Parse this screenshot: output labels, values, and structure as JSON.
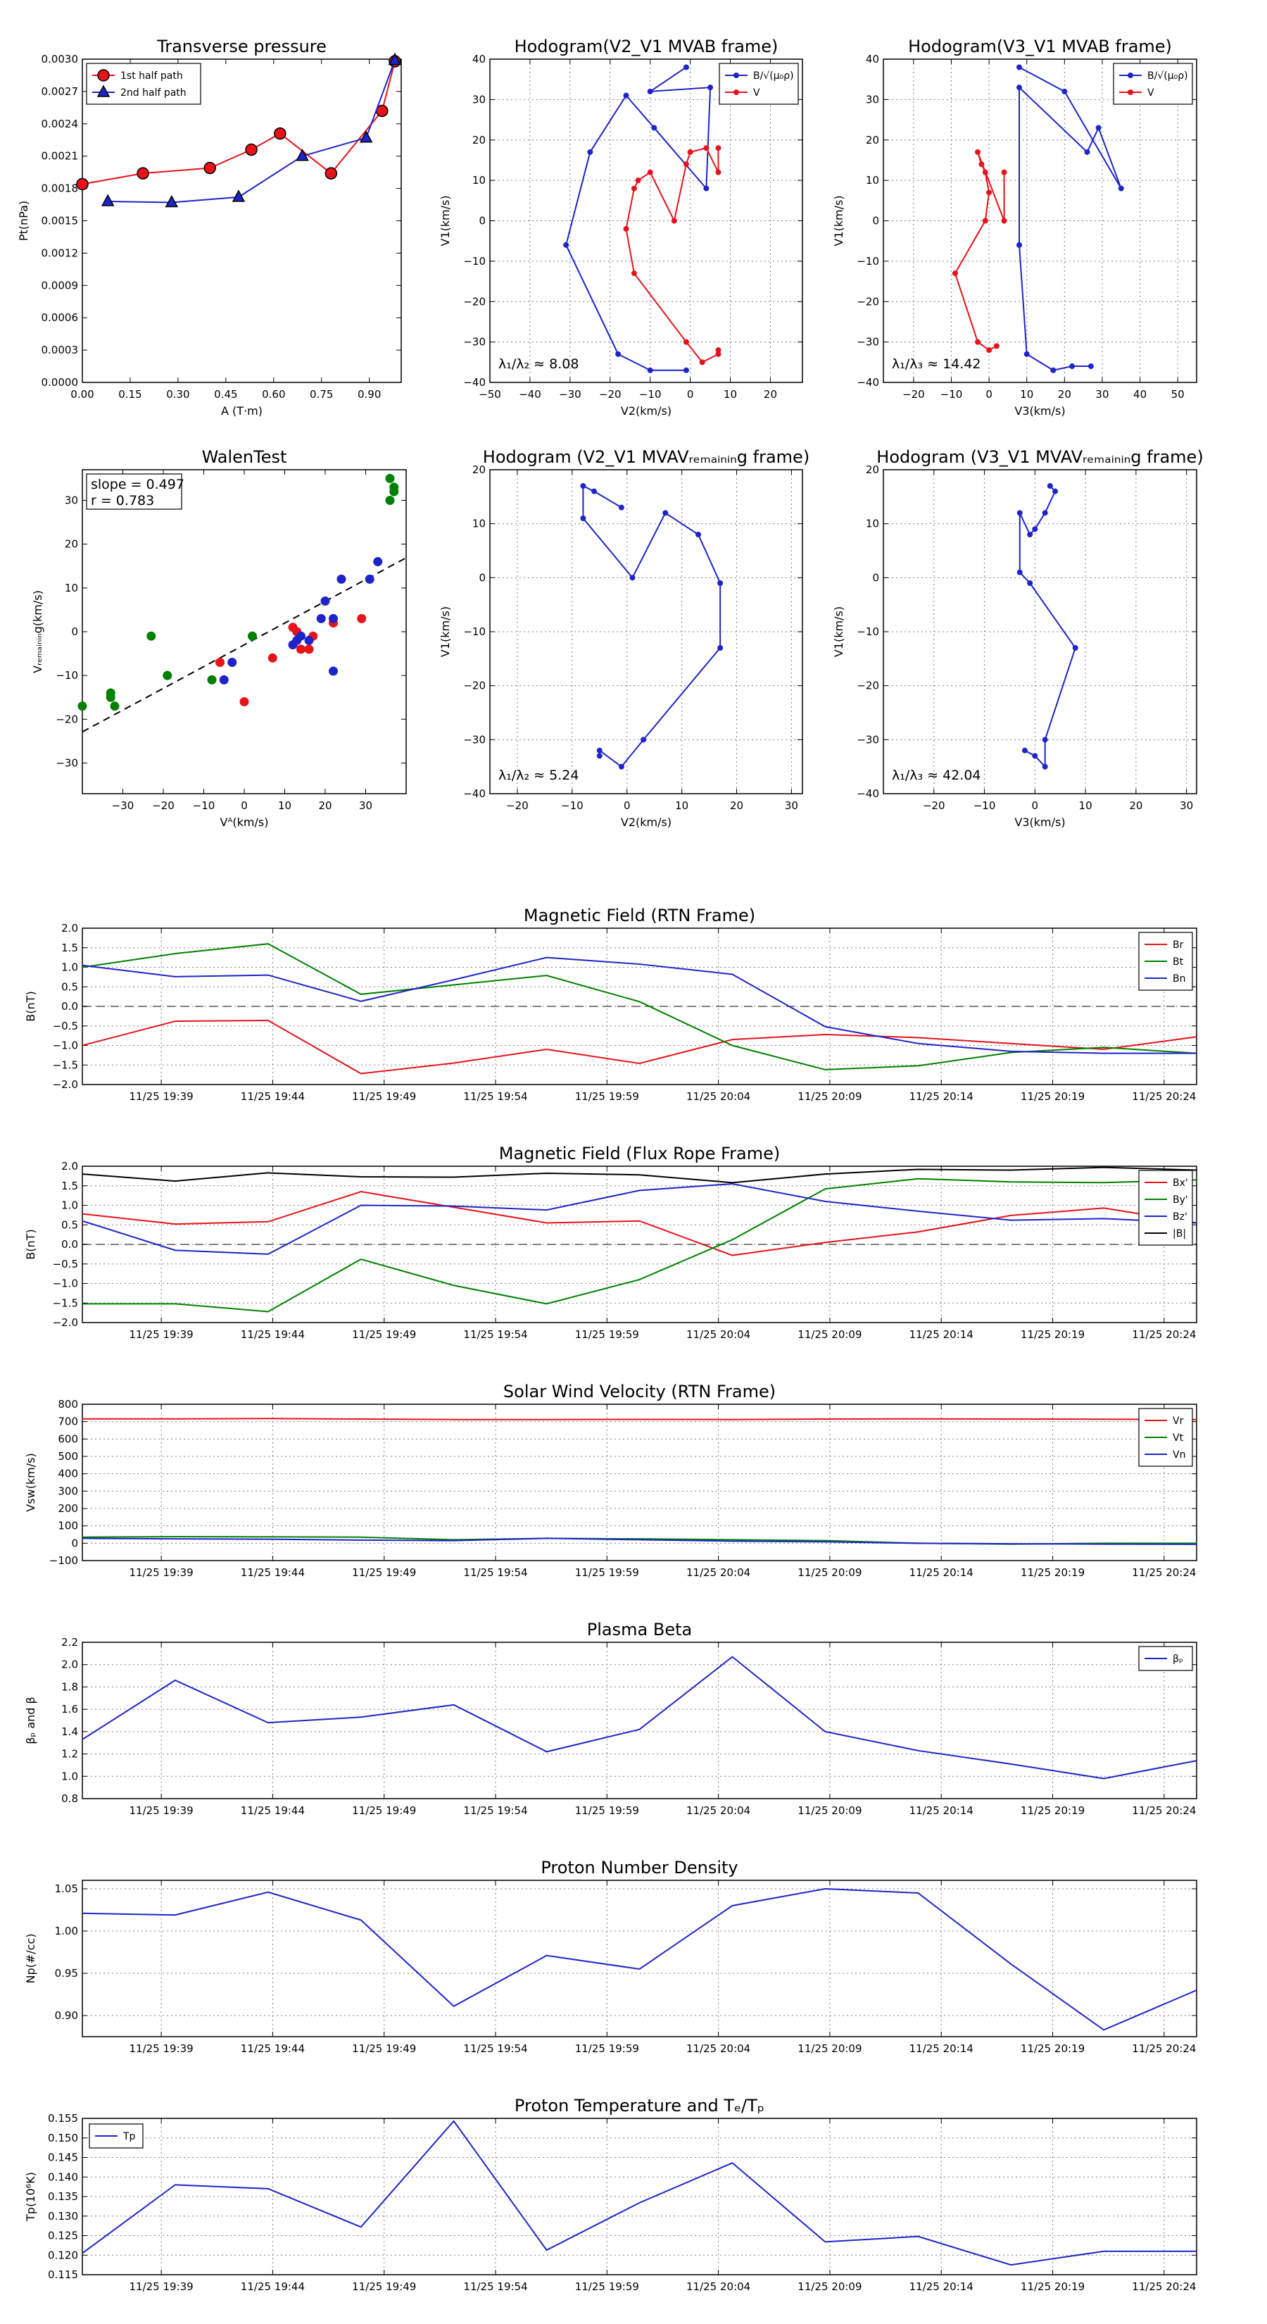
{
  "chart_data": [
    {
      "id": "p1",
      "type": "line",
      "title": "Transverse pressure",
      "xlabel": "A (T·m)",
      "ylabel": "Pt(nPa)",
      "xlim": [
        0,
        1.0
      ],
      "ylim": [
        0,
        0.003
      ],
      "xticks": [
        "0.00",
        "0.15",
        "0.30",
        "0.45",
        "0.60",
        "0.75",
        "0.90"
      ],
      "yticks": [
        "0.0000",
        "0.0003",
        "0.0006",
        "0.0009",
        "0.0012",
        "0.0015",
        "0.0018",
        "0.0021",
        "0.0024",
        "0.0027",
        "0.0030"
      ],
      "grid": false,
      "legend": "top-left",
      "series": [
        {
          "name": "1st half path",
          "color": "#e8121b",
          "marker": "circle",
          "x": [
            0.0,
            0.19,
            0.4,
            0.53,
            0.62,
            0.78,
            0.94,
            0.98
          ],
          "y": [
            0.00184,
            0.00194,
            0.00199,
            0.00216,
            0.00231,
            0.00194,
            0.00252,
            0.00298
          ]
        },
        {
          "name": "2nd half path",
          "color": "#1f24c8",
          "marker": "triangle",
          "x": [
            0.08,
            0.28,
            0.49,
            0.69,
            0.89,
            0.98
          ],
          "y": [
            0.00168,
            0.00167,
            0.00172,
            0.0021,
            0.00227,
            0.00299
          ]
        }
      ]
    },
    {
      "id": "p2",
      "type": "line",
      "title": "Hodogram(V2_V1 MVAB frame)",
      "xlabel": "V2(km/s)",
      "ylabel": "V1(km/s)",
      "xlim": [
        -50,
        28
      ],
      "ylim": [
        -40,
        40
      ],
      "xticks": [
        "−50",
        "−40",
        "−30",
        "−20",
        "−10",
        "0",
        "10",
        "20"
      ],
      "yticks": [
        "−40",
        "−30",
        "−20",
        "−10",
        "0",
        "10",
        "20",
        "30",
        "40"
      ],
      "grid": true,
      "legend": "top-right",
      "annotation": "λ₁/λ₂ ≈ 8.08",
      "series": [
        {
          "name": "B/√(μ₀ρ)",
          "color": "#1f24c8",
          "marker": "dot",
          "x": [
            -1,
            -10,
            -18,
            -31,
            -25,
            -16,
            -9,
            4,
            5,
            -10,
            -1
          ],
          "y": [
            -37,
            -37,
            -33,
            -6,
            17,
            31,
            23,
            8,
            33,
            32,
            38
          ]
        },
        {
          "name": "V",
          "color": "#e8121b",
          "marker": "dot",
          "x": [
            7,
            7,
            3,
            -1,
            -14,
            -16,
            -14,
            -13,
            -10,
            -4,
            -1,
            0,
            4,
            7,
            7
          ],
          "y": [
            -32,
            -33,
            -35,
            -30,
            -13,
            -2,
            8,
            10,
            12,
            0,
            14,
            17,
            18,
            12,
            18
          ]
        }
      ]
    },
    {
      "id": "p3",
      "type": "line",
      "title": "Hodogram(V3_V1 MVAB frame)",
      "xlabel": "V3(km/s)",
      "ylabel": "V1(km/s)",
      "xlim": [
        -28,
        55
      ],
      "ylim": [
        -40,
        40
      ],
      "xticks": [
        "−20",
        "−10",
        "0",
        "10",
        "20",
        "30",
        "40",
        "50"
      ],
      "yticks": [
        "−40",
        "−30",
        "−20",
        "−10",
        "0",
        "10",
        "20",
        "30",
        "40"
      ],
      "grid": true,
      "legend": "top-right",
      "annotation": "λ₁/λ₃ ≈ 14.42",
      "series": [
        {
          "name": "B/√(μ₀ρ)",
          "color": "#1f24c8",
          "marker": "dot",
          "x": [
            27,
            22,
            17,
            10,
            8,
            8,
            26,
            29,
            35,
            20,
            8
          ],
          "y": [
            -36,
            -36,
            -37,
            -33,
            -6,
            33,
            17,
            23,
            8,
            32,
            38
          ]
        },
        {
          "name": "V",
          "color": "#e8121b",
          "marker": "dot",
          "x": [
            2,
            0,
            -3,
            -9,
            -1,
            0,
            -1,
            -2,
            -3,
            4,
            4
          ],
          "y": [
            -31,
            -32,
            -30,
            -13,
            0,
            7,
            12,
            14,
            17,
            0,
            12
          ]
        }
      ]
    },
    {
      "id": "p4",
      "type": "scatter",
      "title": "WalenTest",
      "xlabel": "Vᴬ(km/s)",
      "ylabel": "Vᵣₑₘₐᵢₙᵢₙg(km/s)",
      "xlim": [
        -40,
        40
      ],
      "ylim": [
        -37,
        37
      ],
      "xticks": [
        "−30",
        "−20",
        "−10",
        "0",
        "10",
        "20",
        "30"
      ],
      "yticks": [
        "−30",
        "−20",
        "−10",
        "0",
        "10",
        "20",
        "30"
      ],
      "grid": false,
      "fit": {
        "slope": 0.497,
        "intercept": -3
      },
      "annotation_slope": "slope = 0.497",
      "annotation_r": "r = 0.783",
      "points": [
        {
          "x": -33,
          "y": -14,
          "color": "#008000"
        },
        {
          "x": -33,
          "y": -15,
          "color": "#008000"
        },
        {
          "x": -32,
          "y": -17,
          "color": "#008000"
        },
        {
          "x": -40,
          "y": -17,
          "color": "#008000"
        },
        {
          "x": -23,
          "y": -1,
          "color": "#008000"
        },
        {
          "x": -19,
          "y": -10,
          "color": "#008000"
        },
        {
          "x": -8,
          "y": -11,
          "color": "#008000"
        },
        {
          "x": 2,
          "y": -1,
          "color": "#008000"
        },
        {
          "x": 36,
          "y": 35,
          "color": "#008000"
        },
        {
          "x": 37,
          "y": 32,
          "color": "#008000"
        },
        {
          "x": 37,
          "y": 33,
          "color": "#008000"
        },
        {
          "x": 36,
          "y": 30,
          "color": "#008000"
        },
        {
          "x": -6,
          "y": -7,
          "color": "#e8121b"
        },
        {
          "x": 0,
          "y": -16,
          "color": "#e8121b"
        },
        {
          "x": 7,
          "y": -6,
          "color": "#e8121b"
        },
        {
          "x": 12,
          "y": 1,
          "color": "#e8121b"
        },
        {
          "x": 13,
          "y": 0,
          "color": "#e8121b"
        },
        {
          "x": 14,
          "y": -4,
          "color": "#e8121b"
        },
        {
          "x": 16,
          "y": -4,
          "color": "#e8121b"
        },
        {
          "x": 17,
          "y": -1,
          "color": "#e8121b"
        },
        {
          "x": 22,
          "y": 2,
          "color": "#e8121b"
        },
        {
          "x": 29,
          "y": 3,
          "color": "#e8121b"
        },
        {
          "x": -5,
          "y": -11,
          "color": "#1f24c8"
        },
        {
          "x": -3,
          "y": -7,
          "color": "#1f24c8"
        },
        {
          "x": 12,
          "y": -3,
          "color": "#1f24c8"
        },
        {
          "x": 13,
          "y": -2,
          "color": "#1f24c8"
        },
        {
          "x": 14,
          "y": -1,
          "color": "#1f24c8"
        },
        {
          "x": 16,
          "y": -2,
          "color": "#1f24c8"
        },
        {
          "x": 19,
          "y": 3,
          "color": "#1f24c8"
        },
        {
          "x": 20,
          "y": 7,
          "color": "#1f24c8"
        },
        {
          "x": 22,
          "y": -9,
          "color": "#1f24c8"
        },
        {
          "x": 22,
          "y": 3,
          "color": "#1f24c8"
        },
        {
          "x": 24,
          "y": 12,
          "color": "#1f24c8"
        },
        {
          "x": 31,
          "y": 12,
          "color": "#1f24c8"
        },
        {
          "x": 33,
          "y": 16,
          "color": "#1f24c8"
        }
      ]
    },
    {
      "id": "p5",
      "type": "line",
      "title": "Hodogram (V2_V1 MVAVᵣₑₘₐᵢₙᵢₙg frame)",
      "xlabel": "V2(km/s)",
      "ylabel": "V1(km/s)",
      "xlim": [
        -25,
        32
      ],
      "ylim": [
        -40,
        20
      ],
      "xticks": [
        "−20",
        "−10",
        "0",
        "10",
        "20",
        "30"
      ],
      "yticks": [
        "−40",
        "−30",
        "−20",
        "−10",
        "0",
        "10",
        "20"
      ],
      "grid": true,
      "annotation": "λ₁/λ₂ ≈ 5.24",
      "series": [
        {
          "name": "",
          "color": "#1f24c8",
          "marker": "dot",
          "x": [
            -5,
            -5,
            -1,
            3,
            17,
            17,
            13,
            7,
            1,
            -8,
            -8,
            -6,
            -1
          ],
          "y": [
            -33,
            -32,
            -35,
            -30,
            -13,
            -1,
            8,
            12,
            0,
            11,
            17,
            16,
            13
          ]
        }
      ]
    },
    {
      "id": "p6",
      "type": "line",
      "title": "Hodogram (V3_V1 MVAVᵣₑₘₐᵢₙᵢₙg frame)",
      "xlabel": "V3(km/s)",
      "ylabel": "V1(km/s)",
      "xlim": [
        -30,
        32
      ],
      "ylim": [
        -40,
        20
      ],
      "xticks": [
        "−20",
        "−10",
        "0",
        "10",
        "20",
        "30"
      ],
      "yticks": [
        "−40",
        "−30",
        "−20",
        "−10",
        "0",
        "10",
        "20"
      ],
      "grid": true,
      "annotation": "λ₁/λ₃ ≈ 42.04",
      "series": [
        {
          "name": "",
          "color": "#1f24c8",
          "marker": "dot",
          "x": [
            -2,
            0,
            2,
            2,
            8,
            -1,
            -3,
            -3,
            -1,
            0,
            2,
            4,
            3
          ],
          "y": [
            -32,
            -33,
            -35,
            -30,
            -13,
            -1,
            1,
            12,
            8,
            9,
            12,
            16,
            17
          ]
        }
      ]
    },
    {
      "id": "ts1",
      "type": "line",
      "title": "Magnetic Field (RTN Frame)",
      "ylabel": "B(nT)",
      "ylim": [
        -2,
        2
      ],
      "yticks": [
        "−2.0",
        "−1.5",
        "−1.0",
        "−0.5",
        "0.0",
        "0.5",
        "1.0",
        "1.5",
        "2.0"
      ],
      "zero_line": true,
      "legend": "top-right",
      "series": [
        {
          "name": "Br",
          "color": "#e8121b",
          "values": [
            -1.0,
            -0.38,
            -0.36,
            -1.72,
            -1.45,
            -1.1,
            -1.46,
            -0.85,
            -0.72,
            -0.8,
            -0.95,
            -1.1,
            -0.78
          ]
        },
        {
          "name": "Bt",
          "color": "#008000",
          "values": [
            1.0,
            1.35,
            1.6,
            0.31,
            0.55,
            0.79,
            0.12,
            -1.0,
            -1.62,
            -1.52,
            -1.18,
            -1.05,
            -1.2
          ]
        },
        {
          "name": "Bn",
          "color": "#1f24c8",
          "values": [
            1.05,
            0.76,
            0.8,
            0.13,
            0.68,
            1.25,
            1.08,
            0.82,
            -0.52,
            -0.95,
            -1.15,
            -1.2,
            -1.2
          ]
        }
      ]
    },
    {
      "id": "ts2",
      "type": "line",
      "title": "Magnetic Field (Flux Rope Frame)",
      "ylabel": "B(nT)",
      "ylim": [
        -2,
        2
      ],
      "yticks": [
        "−2.0",
        "−1.5",
        "−1.0",
        "−0.5",
        "0.0",
        "0.5",
        "1.0",
        "1.5",
        "2.0"
      ],
      "zero_line": true,
      "legend": "top-right",
      "series": [
        {
          "name": "Bx'",
          "color": "#e8121b",
          "values": [
            0.78,
            0.52,
            0.58,
            1.35,
            0.95,
            0.55,
            0.6,
            -0.28,
            0.05,
            0.32,
            0.74,
            0.93,
            0.55
          ]
        },
        {
          "name": "By'",
          "color": "#008000",
          "values": [
            -1.52,
            -1.52,
            -1.72,
            -0.38,
            -1.05,
            -1.52,
            -0.9,
            0.12,
            1.42,
            1.68,
            1.6,
            1.58,
            1.65
          ]
        },
        {
          "name": "Bz'",
          "color": "#1f24c8",
          "values": [
            0.6,
            -0.15,
            -0.25,
            1.0,
            0.98,
            0.88,
            1.38,
            1.55,
            1.1,
            0.85,
            0.62,
            0.66,
            0.55
          ]
        },
        {
          "name": "|B|",
          "color": "#000000",
          "values": [
            1.8,
            1.62,
            1.83,
            1.73,
            1.72,
            1.82,
            1.78,
            1.58,
            1.8,
            1.92,
            1.9,
            1.97,
            1.9
          ]
        }
      ]
    },
    {
      "id": "ts3",
      "type": "line",
      "title": "Solar Wind Velocity (RTN Frame)",
      "ylabel": "Vsw(km/s)",
      "ylim": [
        -100,
        800
      ],
      "yticks": [
        "−100",
        "0",
        "100",
        "200",
        "300",
        "400",
        "500",
        "600",
        "700",
        "800"
      ],
      "legend": "top-right",
      "series": [
        {
          "name": "Vr",
          "color": "#e8121b",
          "values": [
            716,
            716,
            718,
            715,
            712,
            712,
            713,
            712,
            715,
            716,
            715,
            714,
            712
          ]
        },
        {
          "name": "Vt",
          "color": "#008000",
          "values": [
            35,
            38,
            37,
            35,
            20,
            28,
            25,
            20,
            15,
            0,
            -5,
            0,
            0
          ]
        },
        {
          "name": "Vn",
          "color": "#1f24c8",
          "values": [
            28,
            25,
            23,
            18,
            15,
            28,
            20,
            12,
            8,
            0,
            -3,
            -5,
            -6
          ]
        }
      ]
    },
    {
      "id": "ts4",
      "type": "line",
      "title": "Plasma Beta",
      "ylabel": "βₚ and β",
      "ylim": [
        0.8,
        2.2
      ],
      "yticks": [
        "0.8",
        "1.0",
        "1.2",
        "1.4",
        "1.6",
        "1.8",
        "2.0",
        "2.2"
      ],
      "legend": "top-right",
      "series": [
        {
          "name": "βₚ",
          "color": "#1f24c8",
          "values": [
            1.33,
            1.86,
            1.48,
            1.53,
            1.64,
            1.22,
            1.42,
            2.07,
            1.4,
            1.23,
            1.11,
            0.98,
            1.14
          ]
        }
      ]
    },
    {
      "id": "ts5",
      "type": "line",
      "title": "Proton Number Density",
      "ylabel": "Np(#/cc)",
      "ylim": [
        0.875,
        1.06
      ],
      "yticks": [
        "0.90",
        "0.95",
        "1.00",
        "1.05"
      ],
      "ytick_values": [
        0.9,
        0.95,
        1.0,
        1.05
      ],
      "series": [
        {
          "name": "",
          "color": "#1f24c8",
          "values": [
            1.021,
            1.019,
            1.046,
            1.013,
            0.911,
            0.971,
            0.955,
            1.03,
            1.05,
            1.045,
            0.961,
            0.883,
            0.93
          ]
        }
      ]
    },
    {
      "id": "ts6",
      "type": "line",
      "title": "Proton Temperature and Tₑ/Tₚ",
      "ylabel": "Tp(10⁶K)",
      "ylim": [
        0.115,
        0.155
      ],
      "yticks": [
        "0.115",
        "0.120",
        "0.125",
        "0.130",
        "0.135",
        "0.140",
        "0.145",
        "0.150",
        "0.155"
      ],
      "legend": "top-left",
      "series": [
        {
          "name": "Tp",
          "color": "#1f24c8",
          "values": [
            0.1205,
            0.138,
            0.137,
            0.1272,
            0.1543,
            0.1213,
            0.1334,
            0.1436,
            0.1234,
            0.1248,
            0.1175,
            0.121,
            0.121
          ]
        }
      ]
    }
  ],
  "time_axis": {
    "points": 13,
    "labels": [
      "11/25 19:39",
      "11/25 19:44",
      "11/25 19:49",
      "11/25 19:54",
      "11/25 19:59",
      "11/25 20:04",
      "11/25 20:09",
      "11/25 20:14",
      "11/25 20:19",
      "11/25 20:24"
    ],
    "label_index": [
      0.85,
      2.05,
      3.25,
      4.45,
      5.65,
      6.85,
      8.05,
      9.25,
      10.45,
      11.65
    ]
  }
}
